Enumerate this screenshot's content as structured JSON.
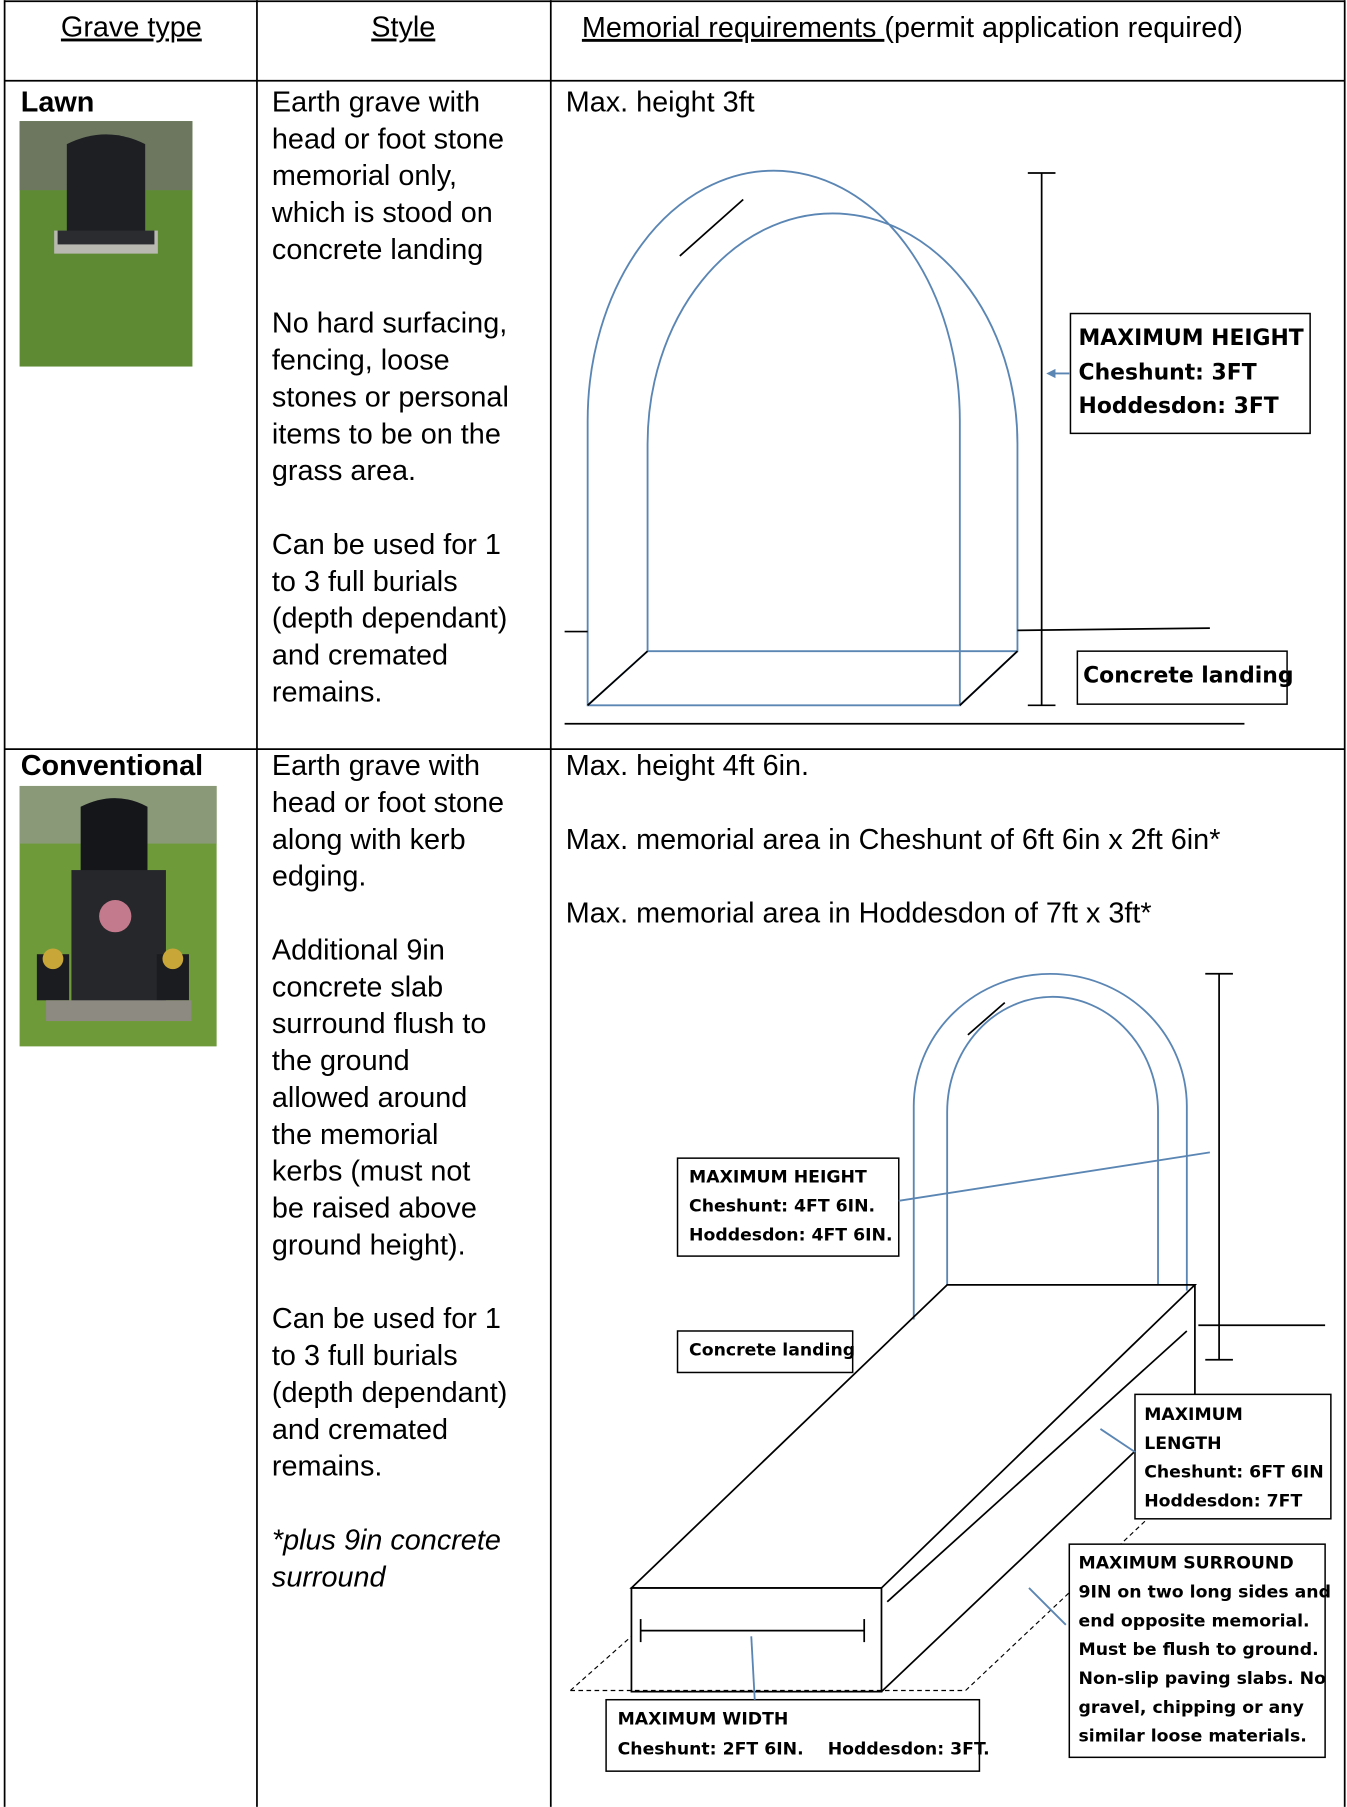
{
  "header": {
    "grave_type": "Grave type",
    "style": "Style",
    "requirements": "Memorial requirements ",
    "requirements_note": "(permit application required)"
  },
  "rows": [
    {
      "grave_type": "Lawn",
      "style": [
        [
          "Earth grave with",
          "head or foot stone",
          "memorial only,",
          "which is stood on",
          "concrete landing"
        ],
        [
          "No hard surfacing,",
          "fencing, loose",
          "stones or personal",
          "items to be on the",
          "grass area."
        ],
        [
          "Can be used for 1",
          "to 3 full burials",
          "(depth dependant)",
          "and cremated",
          "remains."
        ]
      ],
      "requirements": [
        "Max. height 3ft"
      ],
      "diagram": {
        "height": [
          "MAXIMUM HEIGHT",
          "Cheshunt: 3FT",
          "Hoddesdon: 3FT"
        ],
        "landing": "Concrete landing"
      }
    },
    {
      "grave_type": "Conventional",
      "style": [
        [
          "Earth grave with",
          "head or foot stone",
          "along with kerb",
          "edging."
        ],
        [
          "Additional 9in",
          "concrete slab",
          "surround flush to",
          "the ground",
          "allowed around",
          "the memorial",
          "kerbs (must not",
          "be raised above",
          "ground height)."
        ],
        [
          "Can be used for 1",
          "to 3 full burials",
          "(depth dependant)",
          "and cremated",
          "remains."
        ]
      ],
      "note": [
        "*plus 9in concrete",
        "surround"
      ],
      "requirements": [
        "Max. height 4ft 6in.",
        "Max. memorial area in Cheshunt of 6ft 6in x 2ft 6in*",
        "Max. memorial area in Hoddesdon of 7ft x 3ft*"
      ],
      "diagram": {
        "height": [
          "MAXIMUM HEIGHT",
          "Cheshunt: 4FT 6IN.",
          "Hoddesdon: 4FT 6IN."
        ],
        "landing": "Concrete landing",
        "length": [
          "MAXIMUM",
          "LENGTH",
          "Cheshunt: 6FT 6IN",
          "Hoddesdon: 7FT"
        ],
        "surround": [
          "MAXIMUM SURROUND",
          "9IN on two long sides and",
          "end opposite memorial.",
          "Must be flush to ground.",
          "Non-slip paving slabs. No",
          "gravel, chipping or any",
          "similar loose materials."
        ],
        "width": [
          "MAXIMUM WIDTH",
          "Cheshunt: 2FT 6IN.    Hoddesdon: 3FT."
        ]
      }
    }
  ]
}
